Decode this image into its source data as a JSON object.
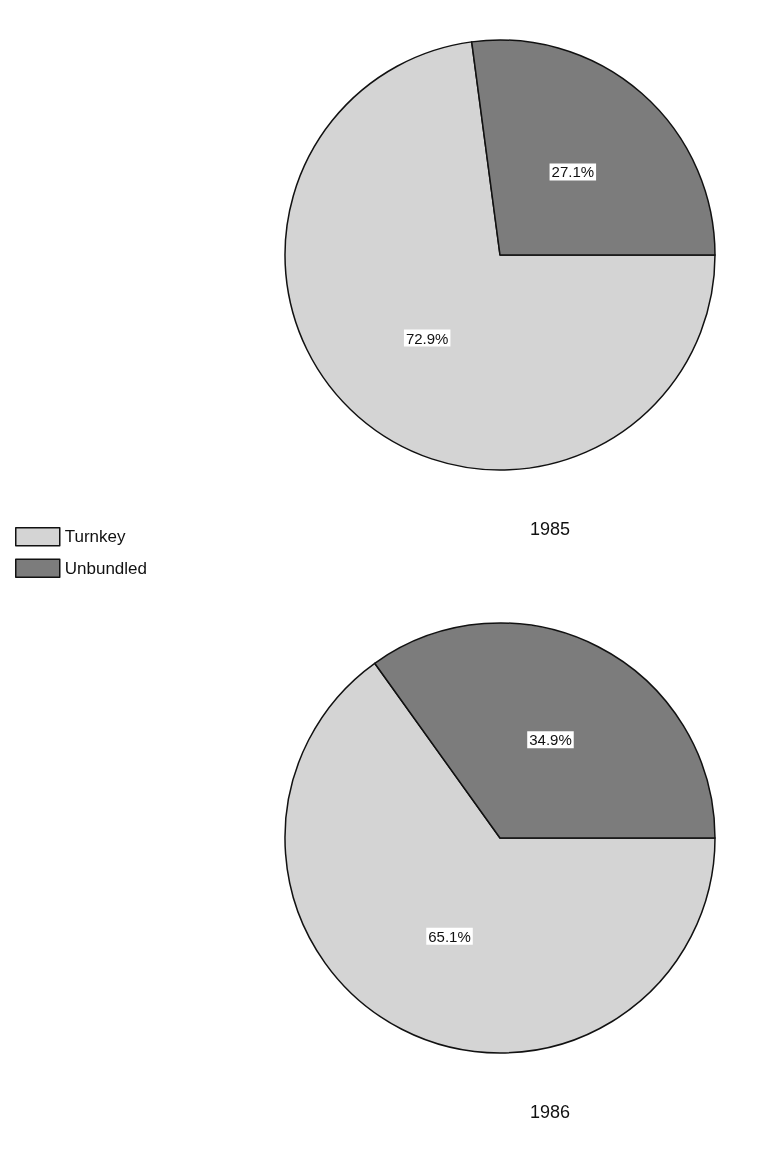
{
  "chart_data": [
    {
      "type": "pie",
      "title": "1985",
      "categories": [
        "Turnkey",
        "Unbundled"
      ],
      "values": [
        72.9,
        27.1
      ],
      "colors": [
        "#d4d4d4",
        "#7c7c7c"
      ],
      "value_labels": [
        "72.9%",
        "27.1%"
      ],
      "legend": "bottom left"
    },
    {
      "type": "pie",
      "title": "1986",
      "categories": [
        null,
        null
      ],
      "values": [
        65.1,
        34.9
      ],
      "colors": [
        "#d4d4d4",
        "#7c7c7c"
      ],
      "value_labels": [
        "65.1%",
        "34.9%"
      ]
    }
  ]
}
